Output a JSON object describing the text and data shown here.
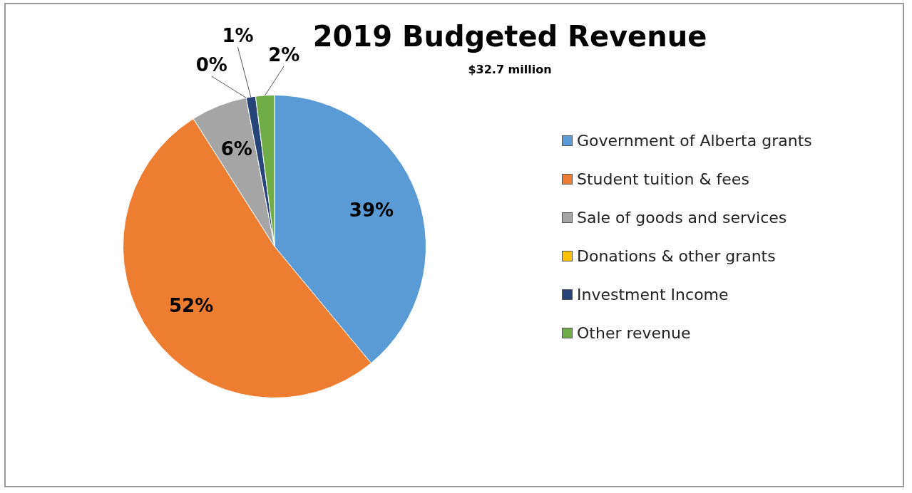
{
  "chart_data": {
    "type": "pie",
    "title": "2019 Budgeted Revenue",
    "subtitle": "$32.7 million",
    "categories": [
      "Government of Alberta grants",
      "Student tuition & fees",
      "Sale of goods and services",
      "Donations & other grants",
      "Investment Income",
      "Other revenue"
    ],
    "values": [
      39,
      52,
      6,
      0,
      1,
      2
    ],
    "colors": [
      "#5b9bd5",
      "#ed7d31",
      "#a5a5a5",
      "#ffc000",
      "#264478",
      "#70ad47"
    ],
    "value_labels": [
      "39%",
      "52%",
      "6%",
      "0%",
      "1%",
      "2%"
    ],
    "legend": "right"
  }
}
